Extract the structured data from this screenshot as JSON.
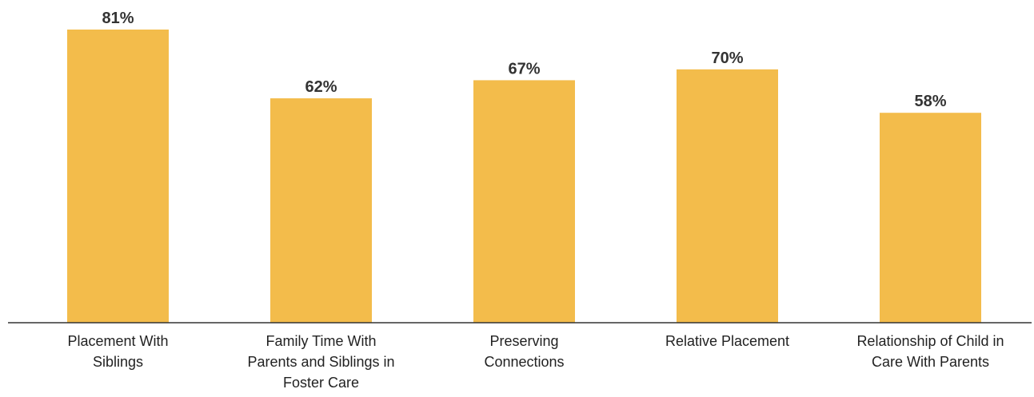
{
  "chart_data": {
    "type": "bar",
    "categories": [
      "Placement With\nSiblings",
      "Family Time With\nParents and Siblings in\nFoster Care",
      "Preserving\nConnections",
      "Relative Placement",
      "Relationship of Child in\nCare With Parents"
    ],
    "values": [
      81,
      62,
      67,
      70,
      58
    ],
    "data_labels": [
      "81%",
      "62%",
      "67%",
      "70%",
      "58%"
    ],
    "title": "",
    "xlabel": "",
    "ylabel": "",
    "ylim": [
      0,
      100
    ],
    "grid": false,
    "legend": "none",
    "bar_color": "#F3BC4B",
    "axis_color": "#333333"
  }
}
